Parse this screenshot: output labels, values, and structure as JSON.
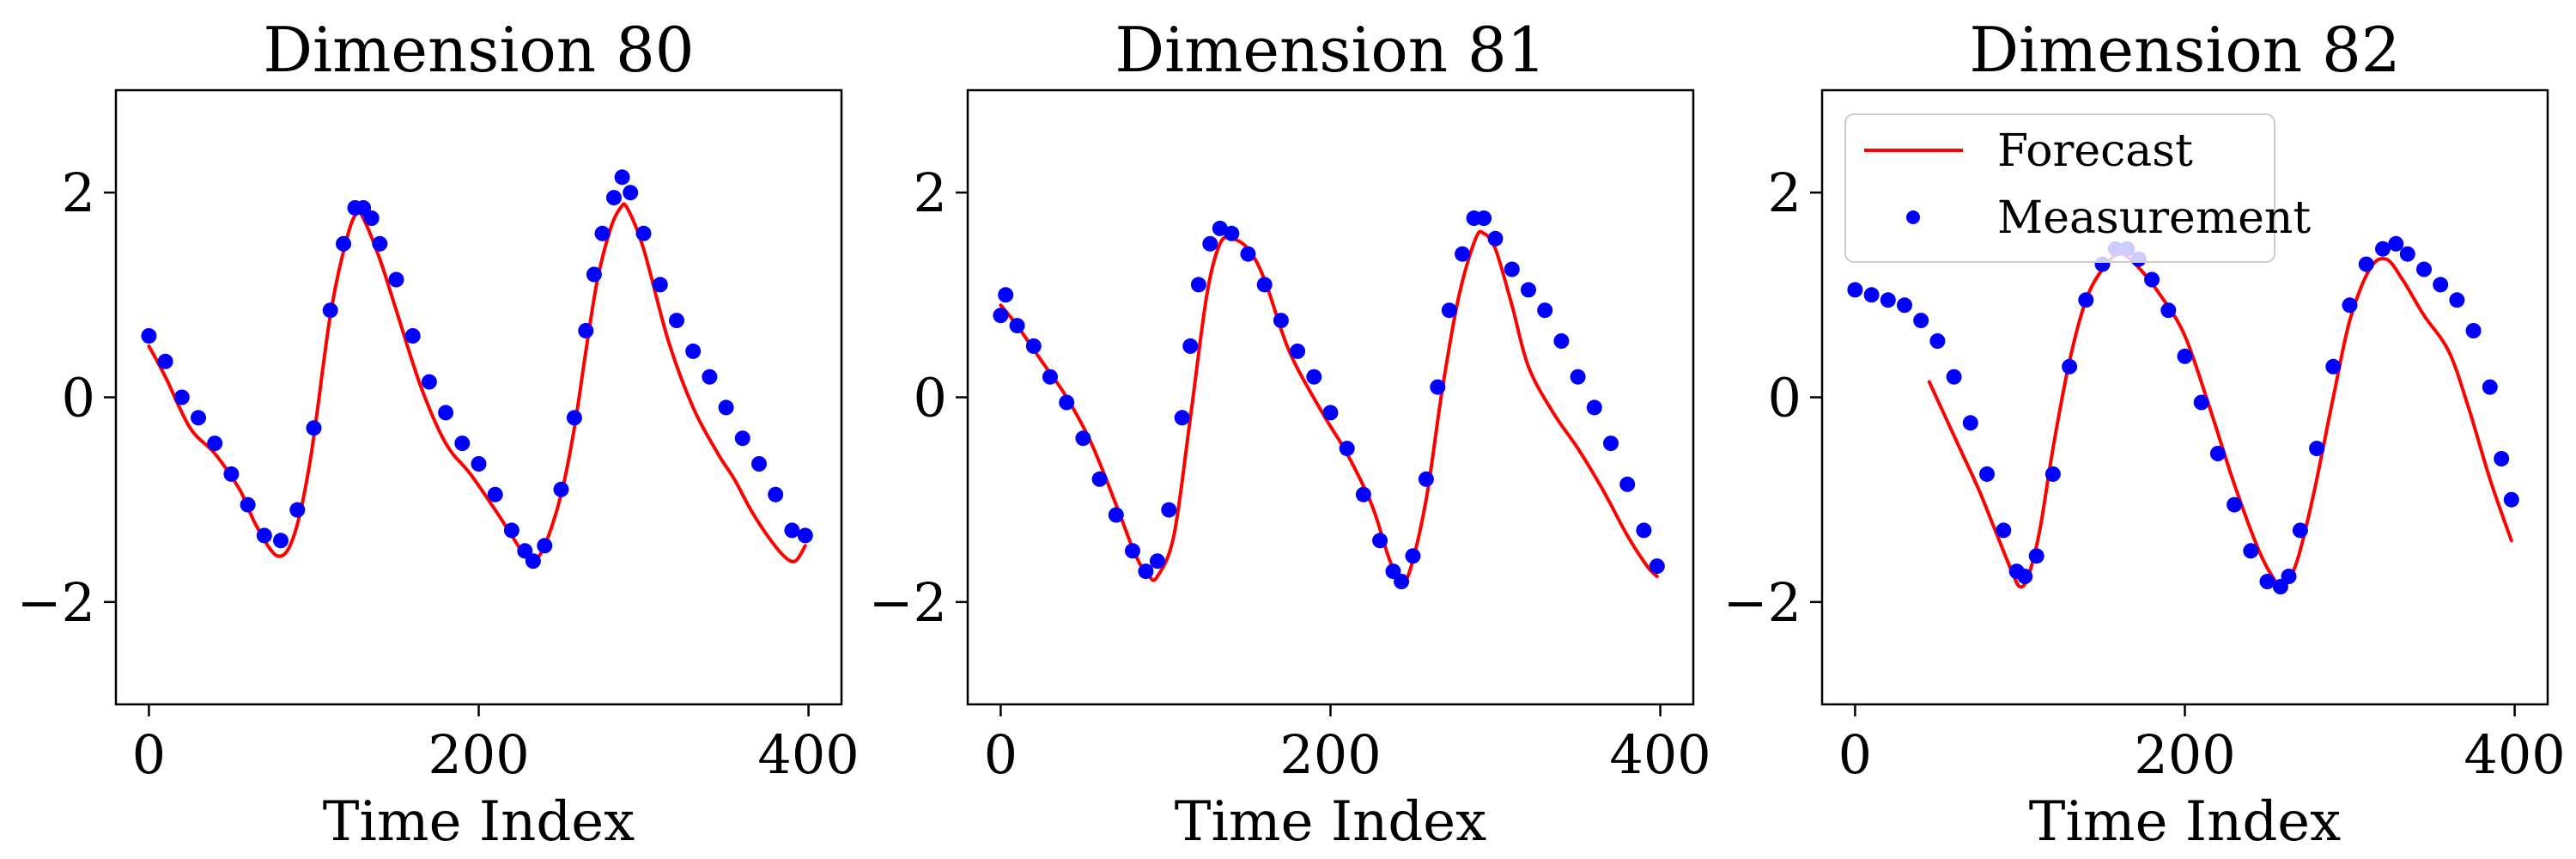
{
  "colors": {
    "forecast": "#ff0000",
    "measurement": "#0000ff",
    "axes": "#000000"
  },
  "legend": {
    "forecast_label": "Forecast",
    "measurement_label": "Measurement",
    "placement": "upper-left",
    "panel": 2
  },
  "chart_data": [
    {
      "type": "line",
      "title": "Dimension 80",
      "xlabel": "Time Index",
      "ylabel": "",
      "xlim": [
        -20,
        420
      ],
      "ylim": [
        -3,
        3
      ],
      "xticks": [
        0,
        200,
        400
      ],
      "xtick_labels": [
        "0",
        "200",
        "400"
      ],
      "yticks": [
        -2,
        0,
        2
      ],
      "ytick_labels": [
        "−2",
        "0",
        "2"
      ],
      "series": [
        {
          "name": "Forecast",
          "style": "line",
          "x": [
            0,
            10,
            25,
            40,
            55,
            65,
            78,
            88,
            98,
            110,
            120,
            126,
            130,
            140,
            150,
            165,
            180,
            195,
            210,
            220,
            228,
            233,
            240,
            250,
            258,
            265,
            272,
            280,
            286,
            290,
            300,
            315,
            330,
            345,
            355,
            365,
            375,
            385,
            392,
            398
          ],
          "y": [
            0.5,
            0.2,
            -0.3,
            -0.55,
            -0.9,
            -1.25,
            -1.55,
            -1.35,
            -0.6,
            0.8,
            1.55,
            1.8,
            1.75,
            1.35,
            0.85,
            0.1,
            -0.45,
            -0.75,
            -1.1,
            -1.35,
            -1.55,
            -1.6,
            -1.45,
            -0.95,
            -0.3,
            0.45,
            1.15,
            1.65,
            1.85,
            1.85,
            1.45,
            0.55,
            -0.1,
            -0.55,
            -0.8,
            -1.1,
            -1.35,
            -1.55,
            -1.6,
            -1.45
          ]
        },
        {
          "name": "Measurement",
          "style": "markers",
          "x": [
            0,
            10,
            20,
            30,
            40,
            50,
            60,
            70,
            80,
            90,
            100,
            110,
            118,
            125,
            130,
            135,
            140,
            150,
            160,
            170,
            180,
            190,
            200,
            210,
            220,
            228,
            233,
            240,
            250,
            258,
            265,
            270,
            275,
            282,
            287,
            292,
            300,
            310,
            320,
            330,
            340,
            350,
            360,
            370,
            380,
            390,
            398
          ],
          "y": [
            0.6,
            0.35,
            0.0,
            -0.2,
            -0.45,
            -0.75,
            -1.05,
            -1.35,
            -1.4,
            -1.1,
            -0.3,
            0.85,
            1.5,
            1.85,
            1.85,
            1.75,
            1.5,
            1.15,
            0.6,
            0.15,
            -0.15,
            -0.45,
            -0.65,
            -0.95,
            -1.3,
            -1.5,
            -1.6,
            -1.45,
            -0.9,
            -0.2,
            0.65,
            1.2,
            1.6,
            1.95,
            2.15,
            2.0,
            1.6,
            1.1,
            0.75,
            0.45,
            0.2,
            -0.1,
            -0.4,
            -0.65,
            -0.95,
            -1.3,
            -1.35
          ]
        }
      ]
    },
    {
      "type": "line",
      "title": "Dimension 81",
      "xlabel": "Time Index",
      "ylabel": "",
      "xlim": [
        -20,
        420
      ],
      "ylim": [
        -3,
        3
      ],
      "xticks": [
        0,
        200,
        400
      ],
      "xtick_labels": [
        "0",
        "200",
        "400"
      ],
      "yticks": [
        -2,
        0,
        2
      ],
      "ytick_labels": [
        "−2",
        "0",
        "2"
      ],
      "series": [
        {
          "name": "Forecast",
          "style": "line",
          "x": [
            0,
            10,
            25,
            40,
            55,
            70,
            82,
            90,
            95,
            105,
            115,
            125,
            133,
            140,
            150,
            160,
            175,
            195,
            210,
            225,
            235,
            242,
            248,
            258,
            268,
            278,
            288,
            293,
            300,
            310,
            320,
            335,
            350,
            365,
            380,
            392,
            398
          ],
          "y": [
            0.9,
            0.7,
            0.35,
            0.0,
            -0.45,
            -1.05,
            -1.55,
            -1.75,
            -1.75,
            -1.35,
            -0.2,
            1.0,
            1.5,
            1.55,
            1.45,
            1.15,
            0.45,
            -0.15,
            -0.55,
            -1.05,
            -1.55,
            -1.8,
            -1.7,
            -1.0,
            0.1,
            1.0,
            1.55,
            1.6,
            1.45,
            0.9,
            0.3,
            -0.15,
            -0.5,
            -0.9,
            -1.35,
            -1.65,
            -1.75
          ]
        },
        {
          "name": "Measurement",
          "style": "markers",
          "x": [
            0,
            3,
            10,
            20,
            30,
            40,
            50,
            60,
            70,
            80,
            88,
            95,
            102,
            110,
            115,
            120,
            127,
            133,
            140,
            150,
            160,
            170,
            180,
            190,
            200,
            210,
            220,
            230,
            238,
            243,
            250,
            258,
            265,
            272,
            280,
            287,
            293,
            300,
            310,
            320,
            330,
            340,
            350,
            360,
            370,
            380,
            390,
            398
          ],
          "y": [
            0.8,
            1.0,
            0.7,
            0.5,
            0.2,
            -0.05,
            -0.4,
            -0.8,
            -1.15,
            -1.5,
            -1.7,
            -1.6,
            -1.1,
            -0.2,
            0.5,
            1.1,
            1.5,
            1.65,
            1.6,
            1.4,
            1.1,
            0.75,
            0.45,
            0.2,
            -0.15,
            -0.5,
            -0.95,
            -1.4,
            -1.7,
            -1.8,
            -1.55,
            -0.8,
            0.1,
            0.85,
            1.4,
            1.75,
            1.75,
            1.55,
            1.25,
            1.05,
            0.85,
            0.55,
            0.2,
            -0.1,
            -0.45,
            -0.85,
            -1.3,
            -1.65
          ]
        }
      ]
    },
    {
      "type": "line",
      "title": "Dimension 82",
      "xlabel": "Time Index",
      "ylabel": "",
      "xlim": [
        -20,
        420
      ],
      "ylim": [
        -3,
        3
      ],
      "xticks": [
        0,
        200,
        400
      ],
      "xtick_labels": [
        "0",
        "200",
        "400"
      ],
      "yticks": [
        -2,
        0,
        2
      ],
      "ytick_labels": [
        "−2",
        "0",
        "2"
      ],
      "series": [
        {
          "name": "Forecast",
          "style": "line",
          "x": [
            45,
            55,
            65,
            75,
            85,
            95,
            100,
            105,
            112,
            120,
            130,
            140,
            150,
            160,
            170,
            185,
            200,
            215,
            230,
            245,
            255,
            260,
            268,
            278,
            290,
            300,
            312,
            322,
            332,
            345,
            360,
            372,
            385,
            398
          ],
          "y": [
            0.15,
            -0.2,
            -0.55,
            -0.9,
            -1.3,
            -1.7,
            -1.85,
            -1.75,
            -1.3,
            -0.5,
            0.35,
            0.95,
            1.25,
            1.4,
            1.3,
            1.0,
            0.6,
            -0.1,
            -0.85,
            -1.5,
            -1.8,
            -1.85,
            -1.6,
            -0.95,
            0.0,
            0.75,
            1.25,
            1.35,
            1.15,
            0.8,
            0.45,
            -0.1,
            -0.8,
            -1.4
          ]
        },
        {
          "name": "Measurement",
          "style": "markers",
          "x": [
            0,
            10,
            20,
            30,
            40,
            50,
            60,
            70,
            80,
            90,
            98,
            103,
            110,
            120,
            130,
            140,
            150,
            158,
            165,
            172,
            180,
            190,
            200,
            210,
            220,
            230,
            240,
            250,
            258,
            263,
            270,
            280,
            290,
            300,
            310,
            320,
            328,
            335,
            345,
            355,
            365,
            375,
            385,
            392,
            398
          ],
          "y": [
            1.05,
            1.0,
            0.95,
            0.9,
            0.75,
            0.55,
            0.2,
            -0.25,
            -0.75,
            -1.3,
            -1.7,
            -1.75,
            -1.55,
            -0.75,
            0.3,
            0.95,
            1.3,
            1.45,
            1.45,
            1.35,
            1.15,
            0.85,
            0.4,
            -0.05,
            -0.55,
            -1.05,
            -1.5,
            -1.8,
            -1.85,
            -1.75,
            -1.3,
            -0.5,
            0.3,
            0.9,
            1.3,
            1.45,
            1.5,
            1.4,
            1.25,
            1.1,
            0.95,
            0.65,
            0.1,
            -0.6,
            -1.0
          ]
        }
      ]
    }
  ]
}
